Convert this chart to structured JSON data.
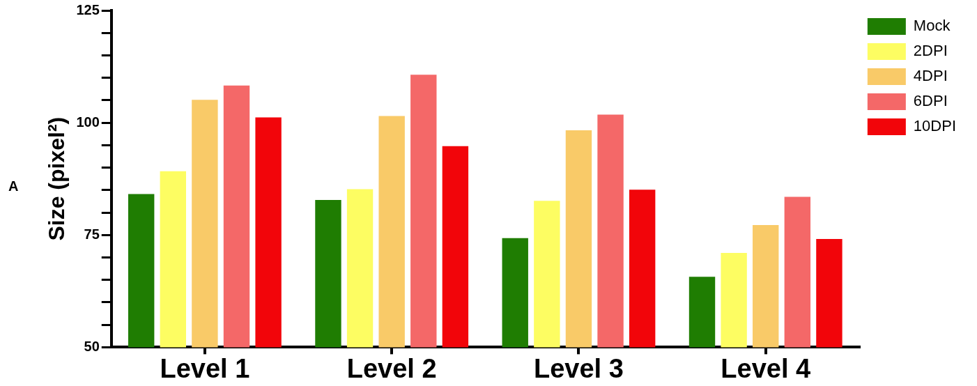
{
  "chart_data": {
    "type": "bar",
    "ylabel": "Size (pixel²)",
    "categories": [
      "Level 1",
      "Level 2",
      "Level 3",
      "Level 4"
    ],
    "series": [
      {
        "name": "Mock",
        "color": "#1f7d02",
        "values": [
          84.1,
          82.8,
          74.3,
          65.7
        ]
      },
      {
        "name": "2DPI",
        "color": "#fdfd62",
        "values": [
          89.2,
          85.2,
          82.6,
          71.0
        ]
      },
      {
        "name": "4DPI",
        "color": "#f9ca68",
        "values": [
          105.1,
          101.5,
          98.3,
          77.2
        ]
      },
      {
        "name": "6DPI",
        "color": "#f46868",
        "values": [
          108.3,
          110.7,
          101.8,
          83.5
        ]
      },
      {
        "name": "10DPI",
        "color": "#f2050a",
        "values": [
          101.2,
          94.8,
          85.1,
          74.1
        ]
      }
    ],
    "ylim": [
      50,
      125
    ],
    "yticks": [
      50,
      {
        "value": 55,
        "label": null
      },
      {
        "value": 60,
        "label": null
      },
      {
        "value": 65,
        "label": null
      },
      {
        "value": 70,
        "label": null
      },
      75,
      {
        "value": 80,
        "label": null
      },
      {
        "value": 85,
        "label": null
      },
      {
        "value": 90,
        "label": null
      },
      {
        "value": 95,
        "label": null
      },
      100,
      {
        "value": 105,
        "label": null
      },
      {
        "value": 110,
        "label": null
      },
      {
        "value": 115,
        "label": null
      },
      {
        "value": 120,
        "label": null
      },
      125
    ],
    "grid": false,
    "legend": "top right",
    "annotations": [
      "A"
    ]
  }
}
